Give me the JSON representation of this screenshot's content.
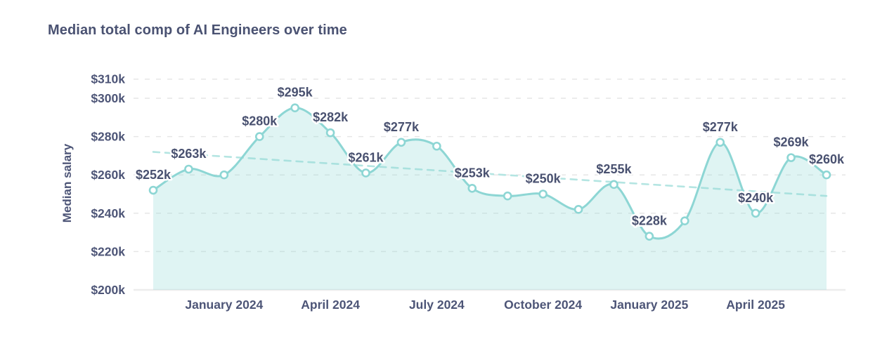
{
  "chart_data": {
    "type": "area",
    "title": "Median total comp of AI Engineers over time",
    "ylabel": "Median salary",
    "xlabel": "",
    "x": [
      "Nov 2023",
      "Dec 2023",
      "Jan 2024",
      "Feb 2024",
      "Mar 2024",
      "Apr 2024",
      "May 2024",
      "Jun 2024",
      "Jul 2024",
      "Aug 2024",
      "Sep 2024",
      "Oct 2024",
      "Nov 2024",
      "Dec 2024",
      "Jan 2025",
      "Feb 2025",
      "Mar 2025",
      "Apr 2025",
      "May 2025",
      "Jun 2025"
    ],
    "values": [
      252,
      263,
      260,
      280,
      295,
      282,
      261,
      277,
      275,
      253,
      249,
      250,
      242,
      255,
      228,
      236,
      277,
      240,
      269,
      260
    ],
    "point_labels": [
      "$252k",
      "$263k",
      "",
      "$280k",
      "$295k",
      "$282k",
      "$261k",
      "$277k",
      "",
      "$253k",
      "",
      "$250k",
      "",
      "$255k",
      "$228k",
      "",
      "$277k",
      "$240k",
      "$269k",
      "$260k"
    ],
    "x_tick_labels": [
      "January 2024",
      "April 2024",
      "July 2024",
      "October 2024",
      "January 2025",
      "April 2025"
    ],
    "x_tick_indices": [
      2,
      5,
      8,
      11,
      14,
      17
    ],
    "y_tick_labels": [
      "$310k",
      "$300k",
      "$280k",
      "$260k",
      "$240k",
      "$220k",
      "$200k"
    ],
    "y_tick_values": [
      310,
      300,
      280,
      260,
      240,
      220,
      200
    ],
    "ylim": [
      200,
      310
    ],
    "grid": "dashed-horizontal",
    "legend": "none",
    "trend_line": {
      "style": "dashed",
      "start_value": 272,
      "end_value": 249
    },
    "colors": {
      "line": "#8dd6d4",
      "marker_fill": "#ffffff",
      "area_fill": "rgba(141,214,212,0.28)",
      "trend": "#b4e5e2",
      "grid": "#e6e6e6",
      "baseline": "#ededed",
      "text": "#4d5577",
      "label_text": "#495170"
    }
  }
}
